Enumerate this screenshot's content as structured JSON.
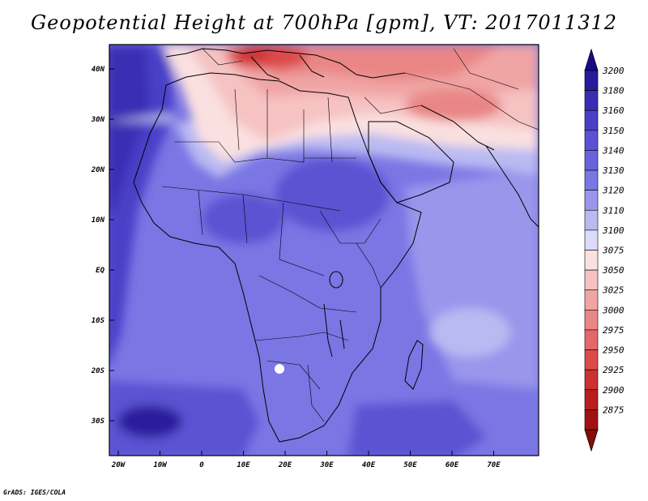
{
  "title": "Geopotential Height at 700hPa [gpm], VT: 2017011312",
  "credit": "GrADS: IGES/COLA",
  "map": {
    "lat_labels": [
      "40N",
      "30N",
      "20N",
      "10N",
      "EQ",
      "10S",
      "20S",
      "30S"
    ],
    "lon_labels": [
      "20W",
      "10W",
      "0",
      "10E",
      "20E",
      "30E",
      "40E",
      "50E",
      "60E",
      "70E"
    ]
  },
  "colorbar": {
    "levels": [
      "3200",
      "3180",
      "3160",
      "3150",
      "3140",
      "3130",
      "3120",
      "3110",
      "3100",
      "3075",
      "3050",
      "3025",
      "3000",
      "2975",
      "2950",
      "2925",
      "2900",
      "2875"
    ],
    "colors": [
      "#2a1a9c",
      "#3a2eb4",
      "#4a40c8",
      "#5a52d2",
      "#6a64dc",
      "#7a76e4",
      "#9a96ec",
      "#babaf2",
      "#dadcf8",
      "#fae0e0",
      "#f6c2c2",
      "#f0a4a4",
      "#ea8686",
      "#e46868",
      "#dc4a4a",
      "#cc3030",
      "#b81e1e",
      "#a01212"
    ],
    "top_arrow_color": "#1a0a8c",
    "bottom_arrow_color": "#8a0a0a"
  }
}
